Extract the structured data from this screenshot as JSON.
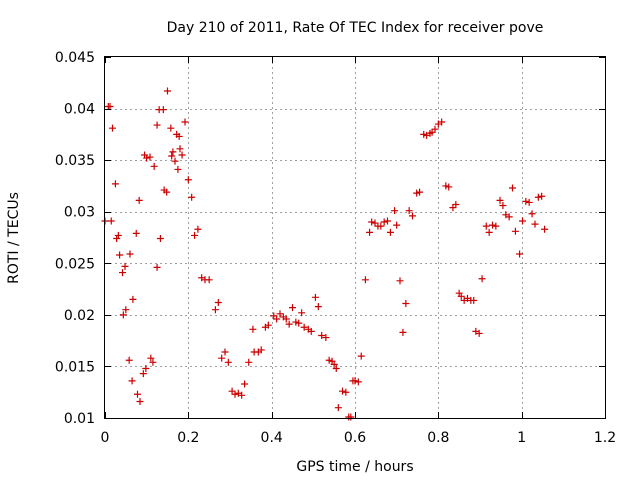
{
  "chart_data": {
    "type": "scatter",
    "title": "Day 210 of 2011, Rate Of TEC Index for receiver pove",
    "xlabel": "GPS time / hours",
    "ylabel": "ROTI / TECUs",
    "xlim": [
      0,
      1.2
    ],
    "ylim": [
      0.01,
      0.045
    ],
    "x_ticks": [
      0,
      0.2,
      0.4,
      0.6,
      0.8,
      1,
      1.2
    ],
    "x_tick_labels": [
      "0",
      "0.2",
      "0.4",
      "0.6",
      "0.8",
      "1",
      "1.2"
    ],
    "y_ticks": [
      0.01,
      0.015,
      0.02,
      0.025,
      0.03,
      0.035,
      0.04,
      0.045
    ],
    "y_tick_labels": [
      "0.01",
      "0.015",
      "0.02",
      "0.025",
      "0.03",
      "0.035",
      "0.04",
      "0.045"
    ],
    "grid": true,
    "marker": "+",
    "color": "#cc0000",
    "series": [
      {
        "name": "ROTI",
        "points": [
          [
            0.0,
            0.0291
          ],
          [
            0.008,
            0.0402
          ],
          [
            0.012,
            0.0402
          ],
          [
            0.015,
            0.0291
          ],
          [
            0.018,
            0.0381
          ],
          [
            0.025,
            0.0327
          ],
          [
            0.028,
            0.0274
          ],
          [
            0.032,
            0.0277
          ],
          [
            0.035,
            0.0258
          ],
          [
            0.042,
            0.0241
          ],
          [
            0.044,
            0.02
          ],
          [
            0.048,
            0.0247
          ],
          [
            0.05,
            0.0205
          ],
          [
            0.058,
            0.0156
          ],
          [
            0.06,
            0.0259
          ],
          [
            0.065,
            0.0136
          ],
          [
            0.067,
            0.0215
          ],
          [
            0.075,
            0.0279
          ],
          [
            0.078,
            0.0123
          ],
          [
            0.082,
            0.0311
          ],
          [
            0.084,
            0.0116
          ],
          [
            0.092,
            0.0143
          ],
          [
            0.095,
            0.0355
          ],
          [
            0.098,
            0.0148
          ],
          [
            0.1,
            0.0352
          ],
          [
            0.108,
            0.0353
          ],
          [
            0.11,
            0.0158
          ],
          [
            0.115,
            0.0154
          ],
          [
            0.118,
            0.0344
          ],
          [
            0.125,
            0.0384
          ],
          [
            0.125,
            0.0246
          ],
          [
            0.13,
            0.0399
          ],
          [
            0.133,
            0.0274
          ],
          [
            0.14,
            0.0399
          ],
          [
            0.142,
            0.0321
          ],
          [
            0.148,
            0.0319
          ],
          [
            0.15,
            0.0417
          ],
          [
            0.158,
            0.0381
          ],
          [
            0.16,
            0.0354
          ],
          [
            0.163,
            0.0358
          ],
          [
            0.168,
            0.0349
          ],
          [
            0.172,
            0.0375
          ],
          [
            0.175,
            0.0341
          ],
          [
            0.178,
            0.0373
          ],
          [
            0.18,
            0.0361
          ],
          [
            0.185,
            0.0355
          ],
          [
            0.192,
            0.0387
          ],
          [
            0.2,
            0.0331
          ],
          [
            0.208,
            0.0314
          ],
          [
            0.215,
            0.0277
          ],
          [
            0.223,
            0.0283
          ],
          [
            0.232,
            0.0236
          ],
          [
            0.24,
            0.0234
          ],
          [
            0.25,
            0.0234
          ],
          [
            0.265,
            0.0205
          ],
          [
            0.272,
            0.0212
          ],
          [
            0.28,
            0.0158
          ],
          [
            0.288,
            0.0164
          ],
          [
            0.296,
            0.0154
          ],
          [
            0.305,
            0.0126
          ],
          [
            0.312,
            0.0123
          ],
          [
            0.32,
            0.0124
          ],
          [
            0.328,
            0.0122
          ],
          [
            0.335,
            0.0133
          ],
          [
            0.345,
            0.0154
          ],
          [
            0.355,
            0.0186
          ],
          [
            0.358,
            0.0164
          ],
          [
            0.368,
            0.0164
          ],
          [
            0.375,
            0.0166
          ],
          [
            0.385,
            0.0188
          ],
          [
            0.392,
            0.019
          ],
          [
            0.405,
            0.0199
          ],
          [
            0.412,
            0.0196
          ],
          [
            0.42,
            0.0201
          ],
          [
            0.428,
            0.0198
          ],
          [
            0.435,
            0.0196
          ],
          [
            0.442,
            0.0191
          ],
          [
            0.45,
            0.0207
          ],
          [
            0.458,
            0.0193
          ],
          [
            0.465,
            0.0192
          ],
          [
            0.472,
            0.0202
          ],
          [
            0.478,
            0.0188
          ],
          [
            0.488,
            0.0186
          ],
          [
            0.495,
            0.0184
          ],
          [
            0.505,
            0.0217
          ],
          [
            0.512,
            0.0208
          ],
          [
            0.52,
            0.018
          ],
          [
            0.53,
            0.0178
          ],
          [
            0.538,
            0.0156
          ],
          [
            0.545,
            0.0155
          ],
          [
            0.55,
            0.0152
          ],
          [
            0.555,
            0.0148
          ],
          [
            0.56,
            0.011
          ],
          [
            0.57,
            0.0126
          ],
          [
            0.578,
            0.0125
          ],
          [
            0.585,
            0.0101
          ],
          [
            0.59,
            0.0101
          ],
          [
            0.595,
            0.0136
          ],
          [
            0.6,
            0.0136
          ],
          [
            0.608,
            0.0135
          ],
          [
            0.615,
            0.016
          ],
          [
            0.625,
            0.0234
          ],
          [
            0.635,
            0.028
          ],
          [
            0.64,
            0.029
          ],
          [
            0.648,
            0.0289
          ],
          [
            0.655,
            0.0286
          ],
          [
            0.662,
            0.0286
          ],
          [
            0.67,
            0.029
          ],
          [
            0.678,
            0.0291
          ],
          [
            0.685,
            0.028
          ],
          [
            0.695,
            0.0301
          ],
          [
            0.7,
            0.0287
          ],
          [
            0.708,
            0.0233
          ],
          [
            0.715,
            0.0183
          ],
          [
            0.722,
            0.0211
          ],
          [
            0.73,
            0.0301
          ],
          [
            0.738,
            0.0296
          ],
          [
            0.748,
            0.0318
          ],
          [
            0.755,
            0.0319
          ],
          [
            0.765,
            0.0375
          ],
          [
            0.772,
            0.0374
          ],
          [
            0.78,
            0.0376
          ],
          [
            0.785,
            0.0377
          ],
          [
            0.792,
            0.038
          ],
          [
            0.8,
            0.0385
          ],
          [
            0.808,
            0.0387
          ],
          [
            0.818,
            0.0325
          ],
          [
            0.825,
            0.0324
          ],
          [
            0.835,
            0.0304
          ],
          [
            0.842,
            0.0307
          ],
          [
            0.85,
            0.0221
          ],
          [
            0.855,
            0.0218
          ],
          [
            0.862,
            0.0214
          ],
          [
            0.87,
            0.0216
          ],
          [
            0.878,
            0.0214
          ],
          [
            0.885,
            0.0214
          ],
          [
            0.89,
            0.0184
          ],
          [
            0.898,
            0.0182
          ],
          [
            0.905,
            0.0235
          ],
          [
            0.915,
            0.0286
          ],
          [
            0.922,
            0.028
          ],
          [
            0.93,
            0.0287
          ],
          [
            0.938,
            0.0286
          ],
          [
            0.948,
            0.0311
          ],
          [
            0.955,
            0.0306
          ],
          [
            0.962,
            0.0297
          ],
          [
            0.97,
            0.0295
          ],
          [
            0.978,
            0.0323
          ],
          [
            0.985,
            0.0281
          ],
          [
            0.995,
            0.0259
          ],
          [
            1.002,
            0.0291
          ],
          [
            1.01,
            0.031
          ],
          [
            1.018,
            0.0309
          ],
          [
            1.025,
            0.0298
          ],
          [
            1.032,
            0.0288
          ],
          [
            1.04,
            0.0314
          ],
          [
            1.048,
            0.0315
          ],
          [
            1.055,
            0.0283
          ]
        ]
      }
    ]
  }
}
